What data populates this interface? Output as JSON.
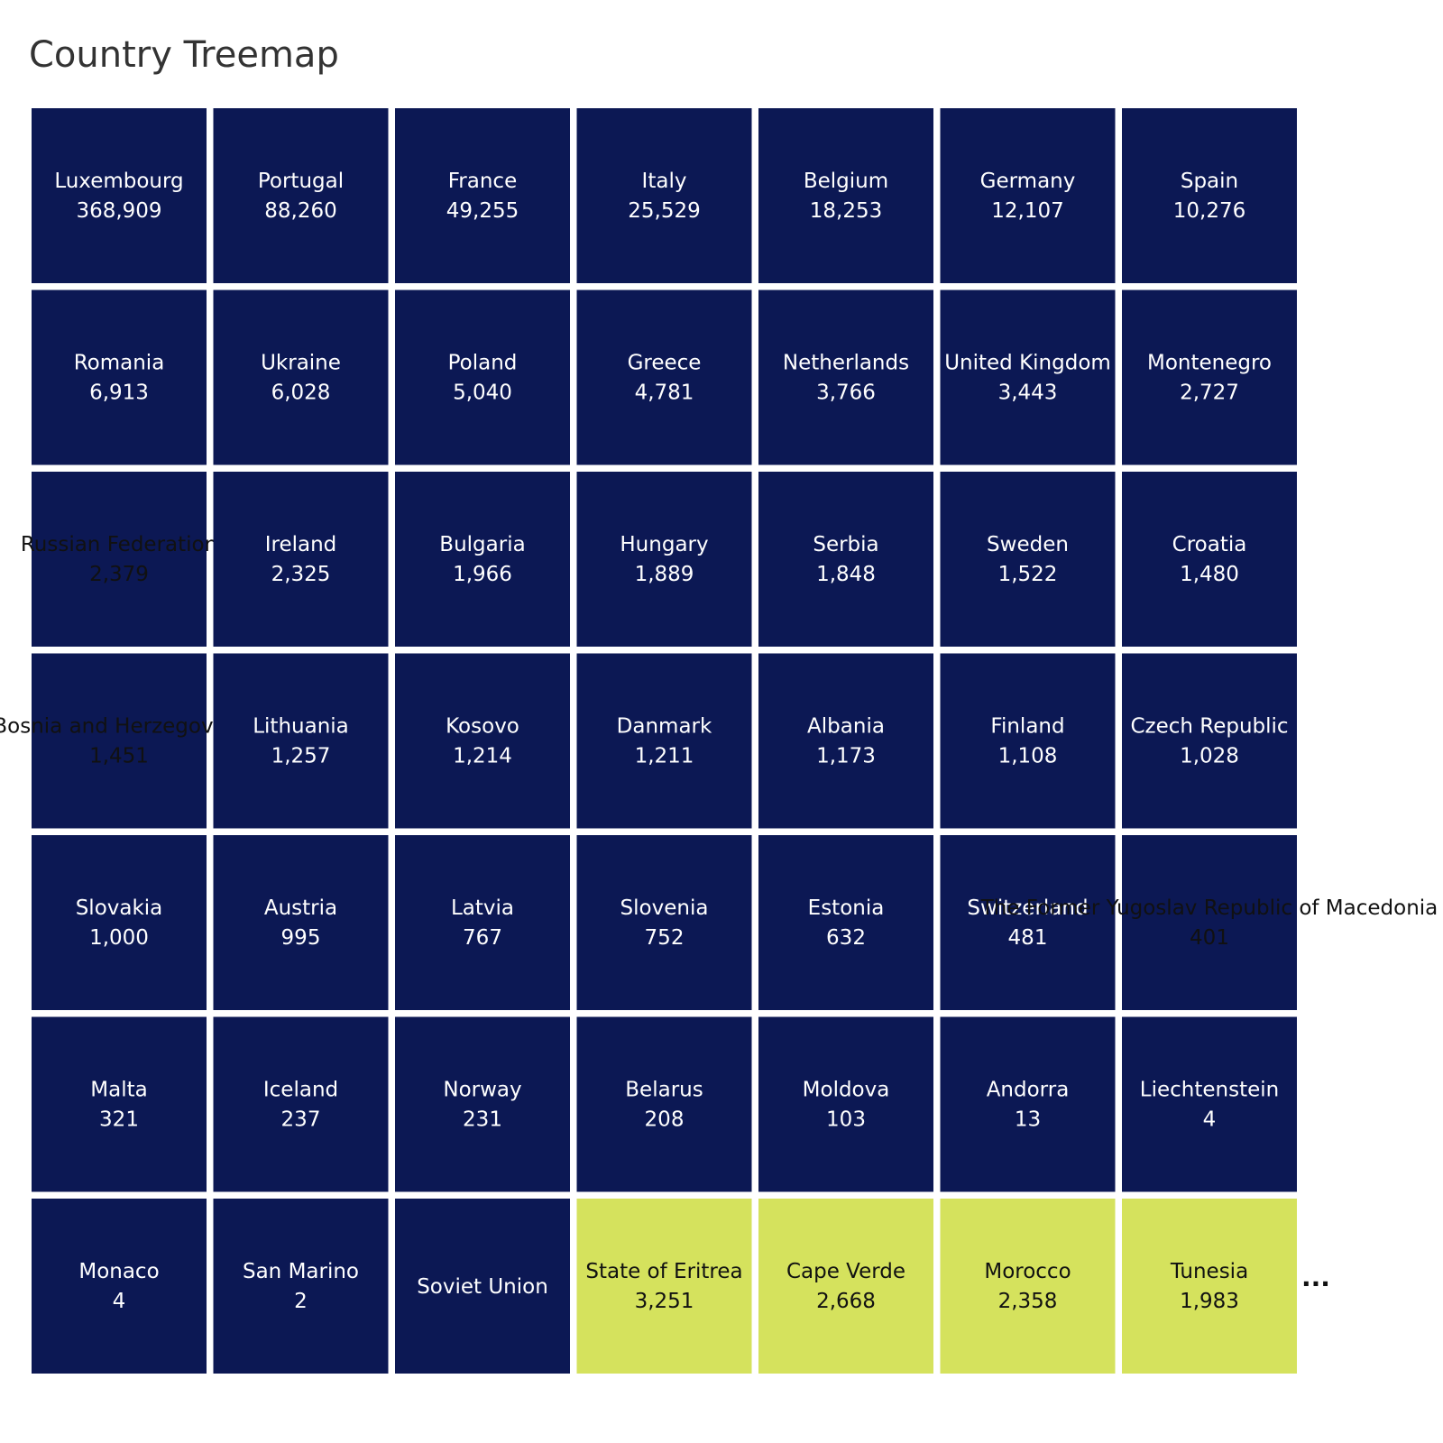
{
  "title": "Country Treemap",
  "more_marker": "...",
  "colors": {
    "group_a": "#0c1854",
    "group_b": "#d5e25d",
    "text_on_dark": "#ffffff",
    "text_on_light": "#111111"
  },
  "chart_data": {
    "type": "treemap",
    "title": "Country Treemap",
    "columns": 7,
    "items": [
      {
        "name": "Luxembourg",
        "value": 368909,
        "label": "368,909",
        "group": "a"
      },
      {
        "name": "Portugal",
        "value": 88260,
        "label": "88,260",
        "group": "a"
      },
      {
        "name": "France",
        "value": 49255,
        "label": "49,255",
        "group": "a"
      },
      {
        "name": "Italy",
        "value": 25529,
        "label": "25,529",
        "group": "a"
      },
      {
        "name": "Belgium",
        "value": 18253,
        "label": "18,253",
        "group": "a"
      },
      {
        "name": "Germany",
        "value": 12107,
        "label": "12,107",
        "group": "a"
      },
      {
        "name": "Spain",
        "value": 10276,
        "label": "10,276",
        "group": "a"
      },
      {
        "name": "Romania",
        "value": 6913,
        "label": "6,913",
        "group": "a"
      },
      {
        "name": "Ukraine",
        "value": 6028,
        "label": "6,028",
        "group": "a"
      },
      {
        "name": "Poland",
        "value": 5040,
        "label": "5,040",
        "group": "a"
      },
      {
        "name": "Greece",
        "value": 4781,
        "label": "4,781",
        "group": "a"
      },
      {
        "name": "Netherlands",
        "value": 3766,
        "label": "3,766",
        "group": "a"
      },
      {
        "name": "United Kingdom",
        "value": 3443,
        "label": "3,443",
        "group": "a"
      },
      {
        "name": "Montenegro",
        "value": 2727,
        "label": "2,727",
        "group": "a"
      },
      {
        "name": "Russian Federation",
        "value": 2379,
        "label": "2,379",
        "group": "a",
        "label_dark": true
      },
      {
        "name": "Ireland",
        "value": 2325,
        "label": "2,325",
        "group": "a"
      },
      {
        "name": "Bulgaria",
        "value": 1966,
        "label": "1,966",
        "group": "a"
      },
      {
        "name": "Hungary",
        "value": 1889,
        "label": "1,889",
        "group": "a"
      },
      {
        "name": "Serbia",
        "value": 1848,
        "label": "1,848",
        "group": "a"
      },
      {
        "name": "Sweden",
        "value": 1522,
        "label": "1,522",
        "group": "a"
      },
      {
        "name": "Croatia",
        "value": 1480,
        "label": "1,480",
        "group": "a"
      },
      {
        "name": "Bosnia and Herzegovina",
        "value": 1451,
        "label": "1,451",
        "group": "a",
        "label_dark": true
      },
      {
        "name": "Lithuania",
        "value": 1257,
        "label": "1,257",
        "group": "a"
      },
      {
        "name": "Kosovo",
        "value": 1214,
        "label": "1,214",
        "group": "a"
      },
      {
        "name": "Danmark",
        "value": 1211,
        "label": "1,211",
        "group": "a"
      },
      {
        "name": "Albania",
        "value": 1173,
        "label": "1,173",
        "group": "a"
      },
      {
        "name": "Finland",
        "value": 1108,
        "label": "1,108",
        "group": "a"
      },
      {
        "name": "Czech Republic",
        "value": 1028,
        "label": "1,028",
        "group": "a"
      },
      {
        "name": "Slovakia",
        "value": 1000,
        "label": "1,000",
        "group": "a"
      },
      {
        "name": "Austria",
        "value": 995,
        "label": "995",
        "group": "a"
      },
      {
        "name": "Latvia",
        "value": 767,
        "label": "767",
        "group": "a"
      },
      {
        "name": "Slovenia",
        "value": 752,
        "label": "752",
        "group": "a"
      },
      {
        "name": "Estonia",
        "value": 632,
        "label": "632",
        "group": "a"
      },
      {
        "name": "Switzerland",
        "value": 481,
        "label": "481",
        "group": "a"
      },
      {
        "name": "The Former Yugoslav Republic of Macedonia",
        "value": 401,
        "label": "401",
        "group": "a",
        "label_dark": true
      },
      {
        "name": "Malta",
        "value": 321,
        "label": "321",
        "group": "a"
      },
      {
        "name": "Iceland",
        "value": 237,
        "label": "237",
        "group": "a"
      },
      {
        "name": "Norway",
        "value": 231,
        "label": "231",
        "group": "a"
      },
      {
        "name": "Belarus",
        "value": 208,
        "label": "208",
        "group": "a"
      },
      {
        "name": "Moldova",
        "value": 103,
        "label": "103",
        "group": "a"
      },
      {
        "name": "Andorra",
        "value": 13,
        "label": "13",
        "group": "a"
      },
      {
        "name": "Liechtenstein",
        "value": 4,
        "label": "4",
        "group": "a"
      },
      {
        "name": "Monaco",
        "value": 4,
        "label": "4",
        "group": "a"
      },
      {
        "name": "San Marino",
        "value": 2,
        "label": "2",
        "group": "a"
      },
      {
        "name": "Soviet Union",
        "value": null,
        "label": "",
        "group": "a"
      },
      {
        "name": "State of Eritrea",
        "value": 3251,
        "label": "3,251",
        "group": "b"
      },
      {
        "name": "Cape Verde",
        "value": 2668,
        "label": "2,668",
        "group": "b"
      },
      {
        "name": "Morocco",
        "value": 2358,
        "label": "2,358",
        "group": "b"
      },
      {
        "name": "Tunesia",
        "value": 1983,
        "label": "1,983",
        "group": "b"
      }
    ]
  }
}
